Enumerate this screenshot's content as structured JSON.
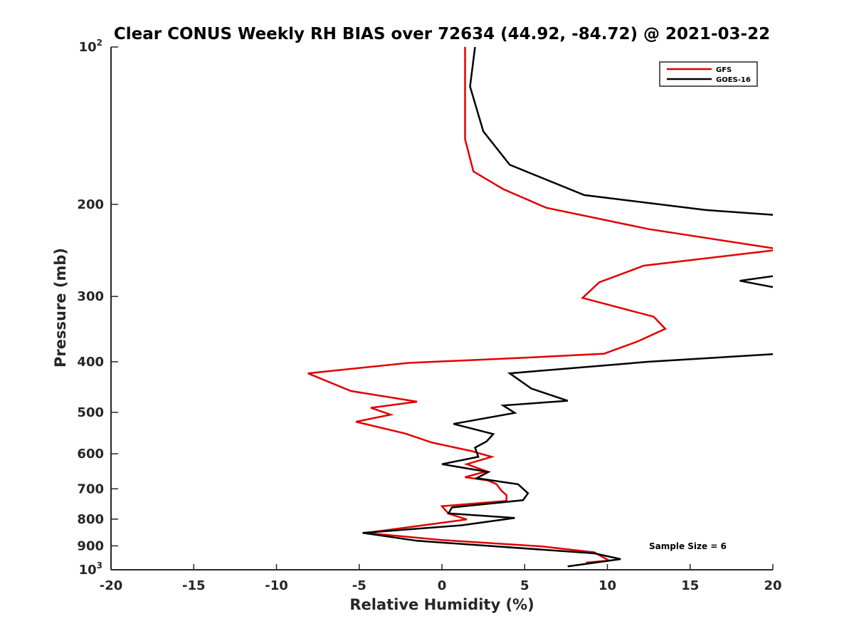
{
  "chart_data": {
    "type": "line",
    "title": "Clear CONUS Weekly RH BIAS over 72634 (44.92, -84.72) @ 2021-03-22",
    "xlabel": "Relative Humidity (%)",
    "ylabel": "Pressure (mb)",
    "xlim": [
      -20,
      20
    ],
    "ylim": [
      100,
      1000
    ],
    "yscale": "log",
    "yaxis_reversed": true,
    "x_ticks": [
      -20,
      -15,
      -10,
      -5,
      0,
      5,
      10,
      15,
      20
    ],
    "x_tick_labels": [
      "-20",
      "-15",
      "-10",
      "-5",
      "0",
      "5",
      "10",
      "15",
      "20"
    ],
    "y_ticks": [
      200,
      300,
      400,
      500,
      600,
      700,
      800,
      900
    ],
    "y_tick_labels": [
      "200",
      "300",
      "400",
      "500",
      "600",
      "700",
      "800",
      "900"
    ],
    "y_end_labels": [
      {
        "value": 100,
        "base": "10",
        "exp": "2"
      },
      {
        "value": 1000,
        "base": "10",
        "exp": "3"
      }
    ],
    "legend_position": "top-right",
    "series": [
      {
        "name": "GFS",
        "color": "#e00000",
        "points": [
          [
            1.4,
            100
          ],
          [
            1.4,
            117
          ],
          [
            1.4,
            150
          ],
          [
            1.9,
            173
          ],
          [
            3.7,
            187
          ],
          [
            6.3,
            203
          ],
          [
            12.5,
            223
          ],
          [
            20.5,
            244
          ],
          [
            12.2,
            262
          ],
          [
            9.5,
            282
          ],
          [
            8.5,
            302
          ],
          [
            12.8,
            328
          ],
          [
            13.5,
            346
          ],
          [
            11.8,
            366
          ],
          [
            9.8,
            386
          ],
          [
            5,
            393
          ],
          [
            -2,
            402
          ],
          [
            -8.1,
            421
          ],
          [
            -5.5,
            455
          ],
          [
            -1.5,
            477
          ],
          [
            -4.3,
            490
          ],
          [
            -3.1,
            505
          ],
          [
            -5.2,
            521
          ],
          [
            -2.2,
            549
          ],
          [
            -0.6,
            571
          ],
          [
            1.8,
            593
          ],
          [
            3,
            608
          ],
          [
            1.5,
            628
          ],
          [
            2.7,
            648
          ],
          [
            1.4,
            665
          ],
          [
            2.8,
            675
          ],
          [
            3.3,
            686
          ],
          [
            3.6,
            706
          ],
          [
            3.9,
            720
          ],
          [
            3.9,
            738
          ],
          [
            0,
            756
          ],
          [
            0.4,
            781
          ],
          [
            1.5,
            801
          ],
          [
            -4.6,
            850
          ],
          [
            0,
            877
          ],
          [
            6,
            902
          ],
          [
            9.2,
            926
          ],
          [
            10.1,
            960
          ],
          [
            8.7,
            969
          ]
        ]
      },
      {
        "name": "GOES-16",
        "color": "#000000",
        "points": [
          [
            2.0,
            100
          ],
          [
            1.7,
            119
          ],
          [
            2.5,
            145
          ],
          [
            4.1,
            168
          ],
          [
            8.6,
            192
          ],
          [
            15.9,
            205
          ],
          [
            20.5,
            210
          ],
          [
            20.5,
            273
          ],
          [
            18,
            280
          ],
          [
            20.5,
            290
          ],
          [
            20.5,
            386
          ],
          [
            12.5,
            400
          ],
          [
            4.1,
            421
          ],
          [
            5.4,
            450
          ],
          [
            7.6,
            475
          ],
          [
            3.7,
            485
          ],
          [
            4.4,
            501
          ],
          [
            0.7,
            526
          ],
          [
            3.1,
            550
          ],
          [
            2.7,
            568
          ],
          [
            2.0,
            584
          ],
          [
            2.2,
            608
          ],
          [
            0,
            628
          ],
          [
            2.8,
            650
          ],
          [
            2.1,
            668
          ],
          [
            4.6,
            686
          ],
          [
            5.2,
            714
          ],
          [
            4.9,
            736
          ],
          [
            0.6,
            760
          ],
          [
            0.4,
            780
          ],
          [
            4.4,
            796
          ],
          [
            1.2,
            822
          ],
          [
            -4.8,
            850
          ],
          [
            -1.5,
            880
          ],
          [
            9.2,
            930
          ],
          [
            10.8,
            954
          ],
          [
            7.6,
            985
          ]
        ]
      }
    ],
    "annotation": "Sample Size = 6"
  }
}
